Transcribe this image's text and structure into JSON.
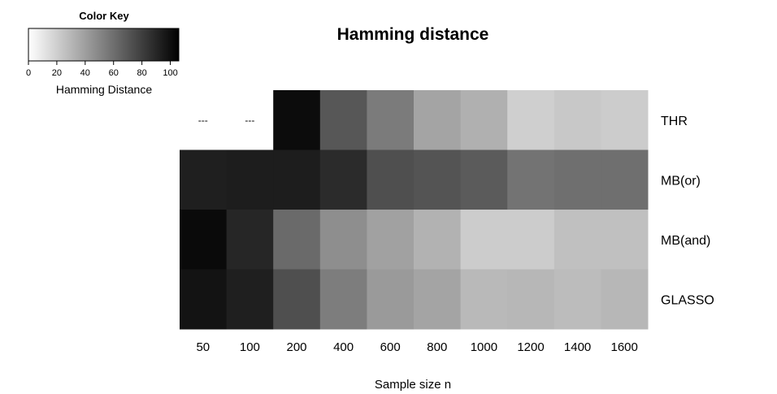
{
  "chart_data": {
    "type": "heatmap",
    "title": "Hamming distance",
    "xlabel": "Sample size n",
    "ylabel": "",
    "x": [
      "50",
      "100",
      "200",
      "400",
      "600",
      "800",
      "1000",
      "1200",
      "1400",
      "1600"
    ],
    "y": [
      "THR",
      "MB(or)",
      "MB(and)",
      "GLASSO"
    ],
    "values": [
      [
        null,
        null,
        101,
        70,
        55,
        38,
        33,
        20,
        23,
        21
      ],
      [
        93,
        94,
        94,
        88,
        73,
        71,
        68,
        58,
        60,
        60
      ],
      [
        102,
        90,
        62,
        47,
        39,
        32,
        21,
        21,
        26,
        26
      ],
      [
        98,
        93,
        73,
        54,
        42,
        38,
        29,
        30,
        28,
        30
      ]
    ],
    "missing_label": "---",
    "color_scale": {
      "low": "#ffffff",
      "high": "#000000",
      "range": [
        0,
        106
      ]
    },
    "color_key": {
      "title": "Color Key",
      "label": "Hamming Distance",
      "ticks": [
        "0",
        "20",
        "40",
        "60",
        "80",
        "100"
      ]
    }
  }
}
